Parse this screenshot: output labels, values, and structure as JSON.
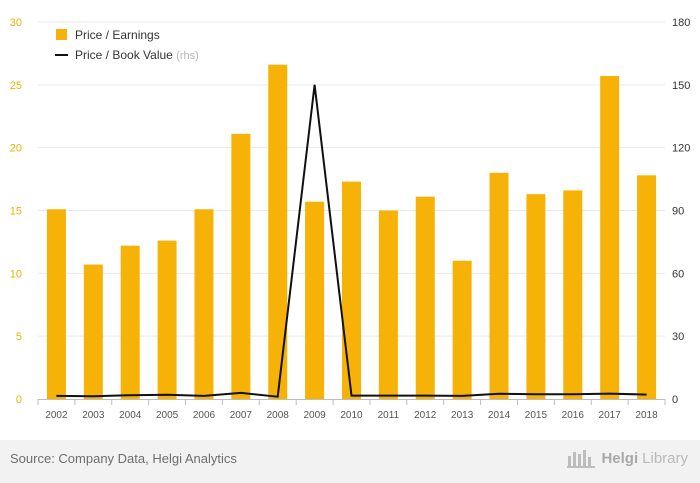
{
  "source": "Source: Company Data, Helgi Analytics",
  "logo": {
    "strong": "Helgi",
    "light": "Library"
  },
  "colors": {
    "bar": "#f7b208",
    "line": "#111111",
    "axis_left": "#f0b000",
    "axis_right": "#333333",
    "grid": "#e9e9e9"
  },
  "chart_data": {
    "type": "bar",
    "categories": [
      "2002",
      "2003",
      "2004",
      "2005",
      "2006",
      "2007",
      "2008",
      "2009",
      "2010",
      "2011",
      "2012",
      "2013",
      "2014",
      "2015",
      "2016",
      "2017",
      "2018"
    ],
    "series": [
      {
        "name": "Price / Earnings",
        "type": "bar",
        "axis": "left",
        "values": [
          15.1,
          10.7,
          12.2,
          12.6,
          15.1,
          21.1,
          26.6,
          15.7,
          17.3,
          15.0,
          16.1,
          11.0,
          18.0,
          16.3,
          16.6,
          25.7,
          17.8
        ]
      },
      {
        "name": "Price / Book Value",
        "name_suffix": "(rhs)",
        "type": "line",
        "axis": "right",
        "values": [
          1.5,
          1.3,
          1.8,
          2.0,
          1.5,
          2.9,
          1.1,
          150,
          1.6,
          1.6,
          1.6,
          1.5,
          2.5,
          2.3,
          2.3,
          2.6,
          2.1
        ]
      }
    ],
    "y_left": {
      "min": 0,
      "max": 30,
      "ticks": [
        0,
        5,
        10,
        15,
        20,
        25,
        30
      ]
    },
    "y_right": {
      "min": 0,
      "max": 180,
      "ticks": [
        0,
        30,
        60,
        90,
        120,
        150,
        180
      ]
    },
    "legend": {
      "placement": "top-left"
    },
    "grid": true
  }
}
